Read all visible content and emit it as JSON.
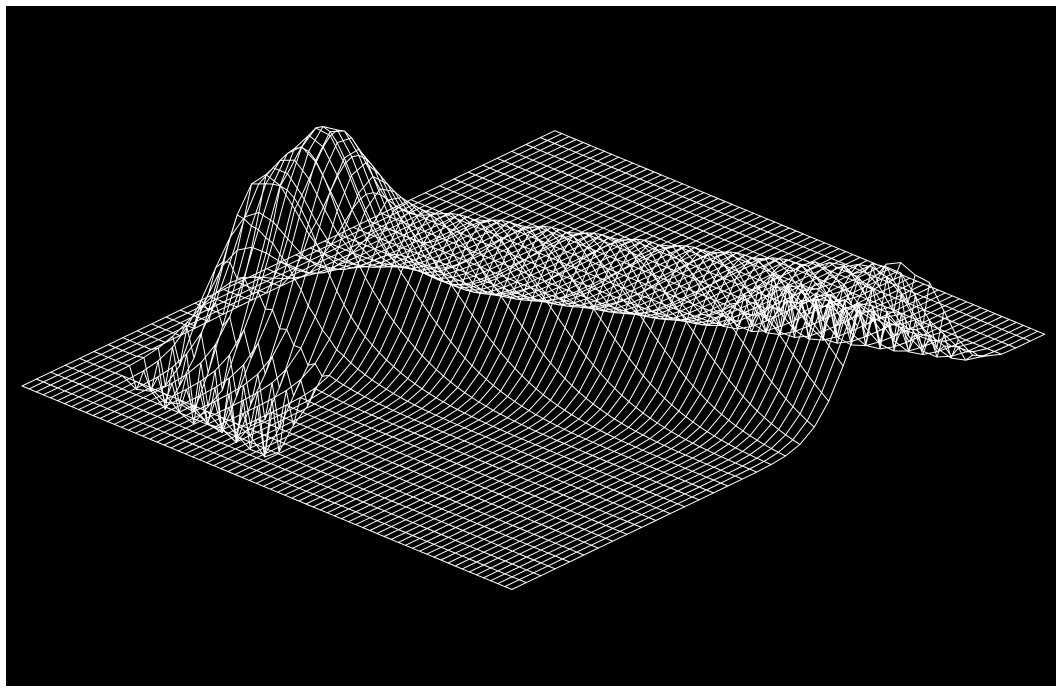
{
  "chart_data": {
    "type": "surface-wireframe",
    "title": "",
    "xlabel": "",
    "ylabel": "",
    "zlabel": "",
    "grid": "off",
    "legend": "none",
    "colors": {
      "background": "#000000",
      "mesh": "#ffffff",
      "border": "#ffffff"
    },
    "x_count": 70,
    "y_count": 38,
    "surface": {
      "ridges": [
        {
          "center_y_start": 12,
          "center_y_end": 26,
          "width": 3.5,
          "height": 1.0,
          "x_start": 6,
          "x_end": 69
        }
      ],
      "bump": {
        "x": 14,
        "y": 15,
        "width_x": 5,
        "width_y": 4,
        "height": 0.55
      },
      "spikes": [
        {
          "region": "left-front",
          "x_range": [
            6,
            22
          ],
          "amplitude": -0.45
        },
        {
          "region": "right-back",
          "x_range": [
            44,
            69
          ],
          "amplitude": 0.35
        }
      ]
    }
  }
}
